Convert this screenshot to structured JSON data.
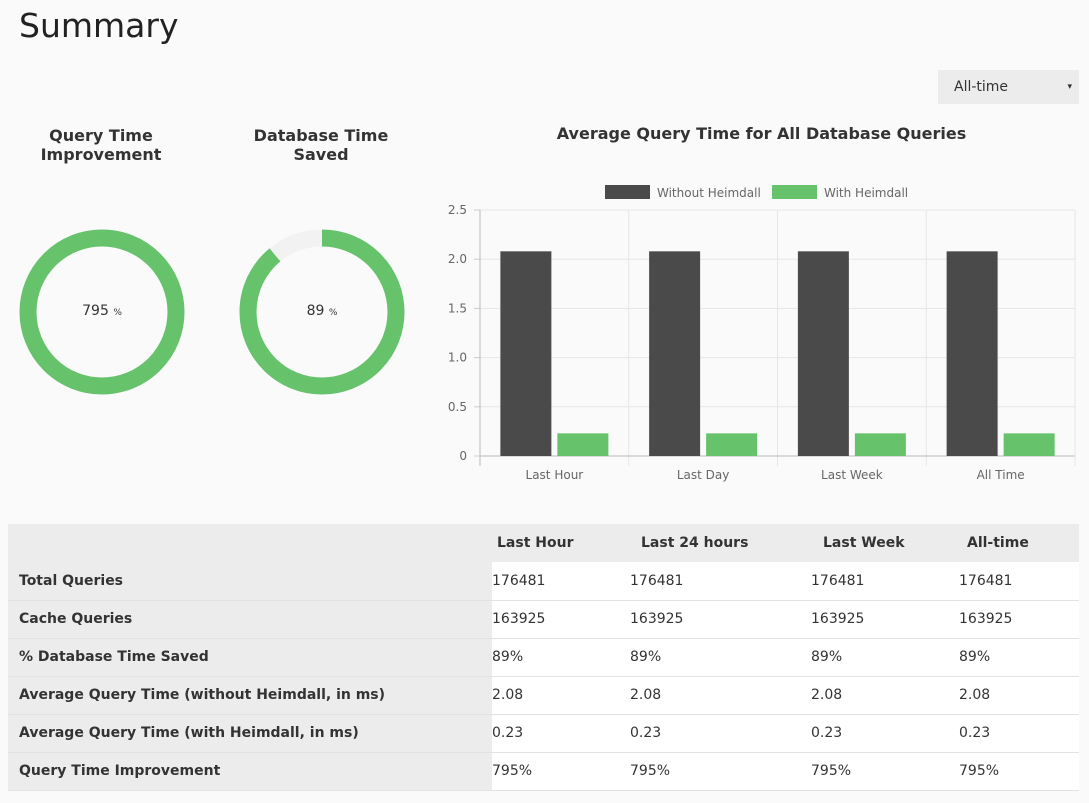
{
  "page_title": "Summary",
  "period_select": {
    "selected": "All-time",
    "arrow": "▾"
  },
  "donuts": [
    {
      "title_line1": "Query Time",
      "title_line2": "Improvement",
      "value": "795",
      "unit": "%",
      "fill_fraction": 1.0,
      "color": "#66c26b"
    },
    {
      "title_line1": "Database Time",
      "title_line2": "Saved",
      "value": "89",
      "unit": "%",
      "fill_fraction": 0.89,
      "color": "#66c26b"
    }
  ],
  "chart_data": {
    "type": "bar",
    "title": "Average Query Time for All Database Queries",
    "categories": [
      "Last Hour",
      "Last Day",
      "Last Week",
      "All Time"
    ],
    "series": [
      {
        "name": "Without Heimdall",
        "color": "#4a4a4a",
        "values": [
          2.08,
          2.08,
          2.08,
          2.08
        ]
      },
      {
        "name": "With Heimdall",
        "color": "#66c26b",
        "values": [
          0.23,
          0.23,
          0.23,
          0.23
        ]
      }
    ],
    "ylim": [
      0,
      2.5
    ],
    "yticks": [
      "0",
      "0.5",
      "1.0",
      "1.5",
      "2.0",
      "2.5"
    ],
    "grid": true,
    "legend": "top"
  },
  "table": {
    "headers": [
      "",
      "Last Hour",
      "Last 24 hours",
      "Last Week",
      "All-time"
    ],
    "rows": [
      {
        "label": "Total Queries",
        "values": [
          "176481",
          "176481",
          "176481",
          "176481"
        ]
      },
      {
        "label": "Cache Queries",
        "values": [
          "163925",
          "163925",
          "163925",
          "163925"
        ]
      },
      {
        "label": "% Database Time Saved",
        "values": [
          "89%",
          "89%",
          "89%",
          "89%"
        ]
      },
      {
        "label": "Average Query Time (without Heimdall, in ms)",
        "values": [
          "2.08",
          "2.08",
          "2.08",
          "2.08"
        ]
      },
      {
        "label": "Average Query Time (with Heimdall, in ms)",
        "values": [
          "0.23",
          "0.23",
          "0.23",
          "0.23"
        ]
      },
      {
        "label": "Query Time Improvement",
        "values": [
          "795%",
          "795%",
          "795%",
          "795%"
        ]
      }
    ]
  }
}
